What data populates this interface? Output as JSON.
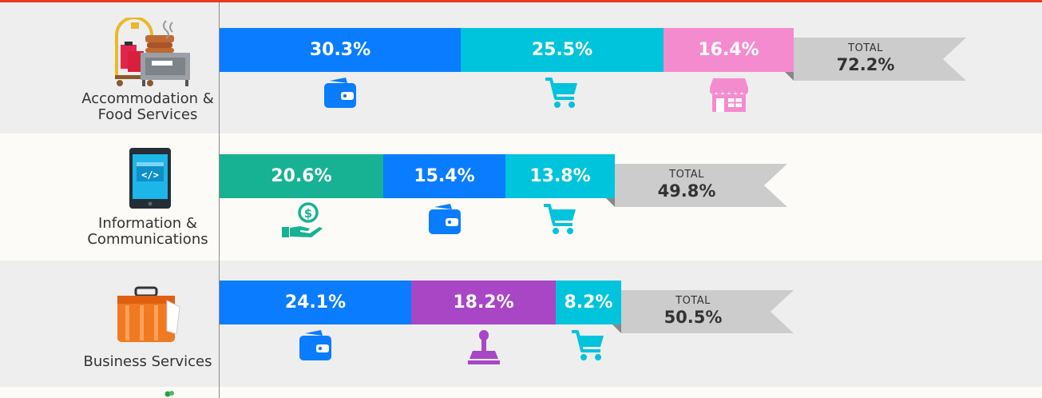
{
  "chart_data": {
    "type": "bar",
    "orientation": "horizontal-stacked",
    "rows": [
      {
        "label": "Accommodation &\nFood Services",
        "icon": "hotel-food-icon",
        "segments": [
          {
            "value": "30.3%",
            "number": 30.3,
            "color": "#0a7cff",
            "icon": "wallet-icon"
          },
          {
            "value": "25.5%",
            "number": 25.5,
            "color": "#00c4db",
            "icon": "shopping-cart-icon"
          },
          {
            "value": "16.4%",
            "number": 16.4,
            "color": "#f58bcf",
            "icon": "storefront-icon"
          }
        ],
        "total_label": "TOTAL",
        "total_value": "72.2%"
      },
      {
        "label": "Information &\nCommunications",
        "icon": "tablet-code-icon",
        "segments": [
          {
            "value": "20.6%",
            "number": 20.6,
            "color": "#17b294",
            "icon": "money-hand-icon"
          },
          {
            "value": "15.4%",
            "number": 15.4,
            "color": "#0a7cff",
            "icon": "wallet-icon"
          },
          {
            "value": "13.8%",
            "number": 13.8,
            "color": "#00c4db",
            "icon": "shopping-cart-icon"
          }
        ],
        "total_label": "TOTAL",
        "total_value": "49.8%"
      },
      {
        "label": "Business Services",
        "icon": "briefcase-icon",
        "segments": [
          {
            "value": "24.1%",
            "number": 24.1,
            "color": "#0a7cff",
            "icon": "wallet-icon"
          },
          {
            "value": "18.2%",
            "number": 18.2,
            "color": "#a846c6",
            "icon": "stamp-icon"
          },
          {
            "value": "8.2%",
            "number": 8.2,
            "color": "#00c4db",
            "icon": "shopping-cart-icon"
          }
        ],
        "total_label": "TOTAL",
        "total_value": "50.5%"
      }
    ],
    "colors": {
      "accent_line": "#e8391d",
      "band_grey": "#eeeeef",
      "band_cream": "#fdfbf7",
      "total_tag": "#cccccc"
    },
    "grid": false,
    "legend": "none"
  }
}
